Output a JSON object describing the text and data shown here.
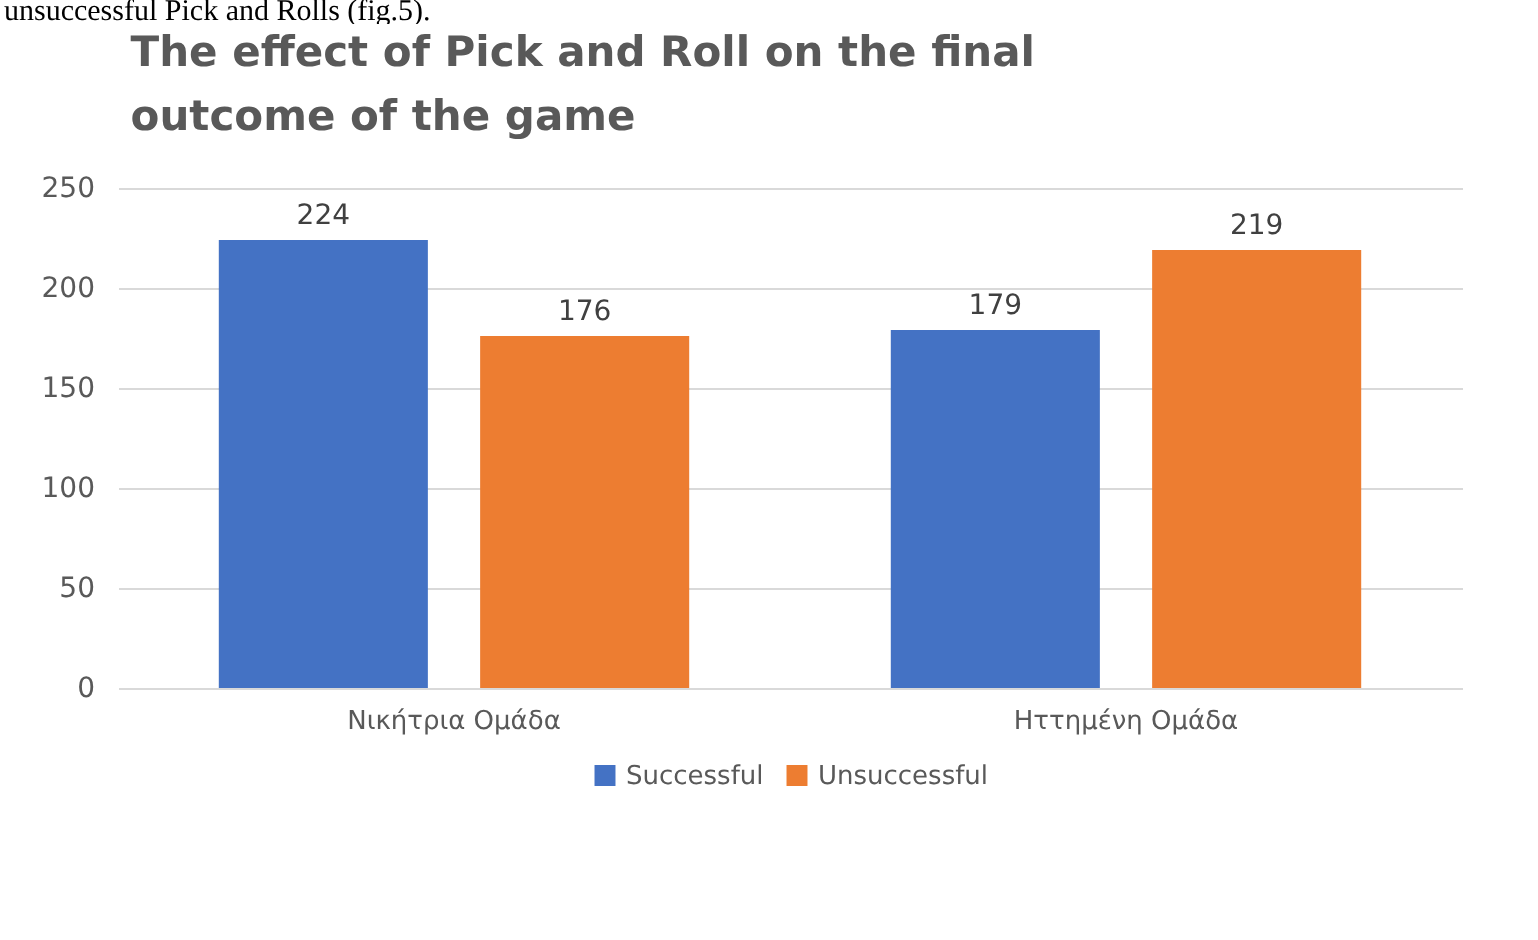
{
  "chart_data": {
    "type": "bar",
    "title": "The effect of Pick and Roll on the final outcome of the game",
    "annotations": [
      "unsuccessful Pick and Rolls (fig.5)."
    ],
    "categories": [
      "Νικήτρια Ομάδα",
      "Ηττημένη Ομάδα"
    ],
    "series": [
      {
        "name": "Successful",
        "color": "#4472c4",
        "values": [
          224,
          179
        ]
      },
      {
        "name": "Unsuccessful",
        "color": "#ed7d31",
        "values": [
          176,
          219
        ]
      }
    ],
    "ylim": [
      0,
      250
    ],
    "yticks": [
      0,
      50,
      100,
      150,
      200,
      250
    ],
    "grid": "y",
    "legend": "bottom",
    "data_labels": true
  }
}
